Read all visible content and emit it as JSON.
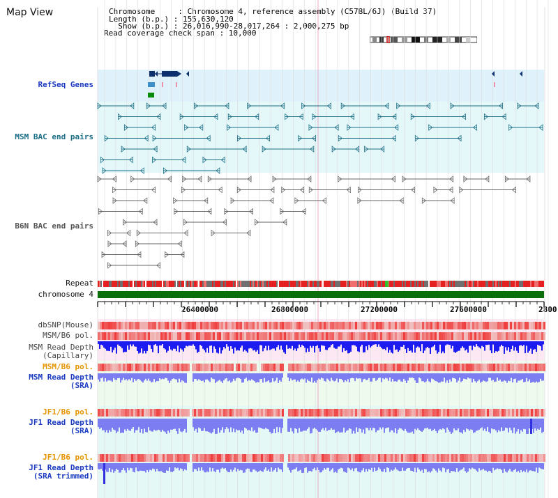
{
  "title": "Map View",
  "info": {
    "line1": "Chromosome     : Chromosome 4, reference assembly (C57BL/6J) (Build 37)",
    "line2": "Length (b.p.) : 155,630,120",
    "line3": "  Show (b.p.) : 26,016,990-28,017,264 : 2,000,275 bp",
    "line4": "Read coverage check span : 10,000"
  },
  "tracks": {
    "refseq": "RefSeq Genes",
    "msm_bac": "MSM BAC end pairs",
    "b6n_bac": "B6N BAC end pairs",
    "repeat": "Repeat",
    "chromosome": "chromosome 4",
    "dbsnp": "dbSNP(Mouse)",
    "msm_pol": "MSM/B6 pol.",
    "msm_depth_cap_1": "MSM Read Depth",
    "msm_depth_cap_2": "(Capillary)",
    "msm_pol_sra": "MSM/B6 pol.",
    "msm_depth_sra_1": "MSM Read Depth",
    "msm_depth_sra_2": "(SRA)",
    "jf1_pol": "JF1/B6 pol.",
    "jf1_depth_1": "JF1 Read Depth",
    "jf1_depth_2": "(SRA)",
    "jf1_pol_t": "JF1/B6 pol.",
    "jf1_depth_t_1": "JF1 Read Depth",
    "jf1_depth_t_2": "(SRA trimmed)"
  },
  "axis": {
    "ticks": [
      "26400000",
      "26800000",
      "27200000",
      "27600000",
      "2800"
    ]
  },
  "colors": {
    "refseq_bg": "#dff2fb",
    "msm_bg": "#e4f8fa",
    "b6n_bg": "#ffffff",
    "pink_bg": "#fbe8f2",
    "green_bg": "#eefaee",
    "cyan_bg": "#e4f8f6",
    "gene_dark": "#0d2f6e",
    "msm_feature": "#1c6e86",
    "b6n_feature": "#666666",
    "chromosome": "#0a6e0a",
    "depth_blue": "#1c1cf0",
    "depth_light": "#7d7df2"
  }
}
